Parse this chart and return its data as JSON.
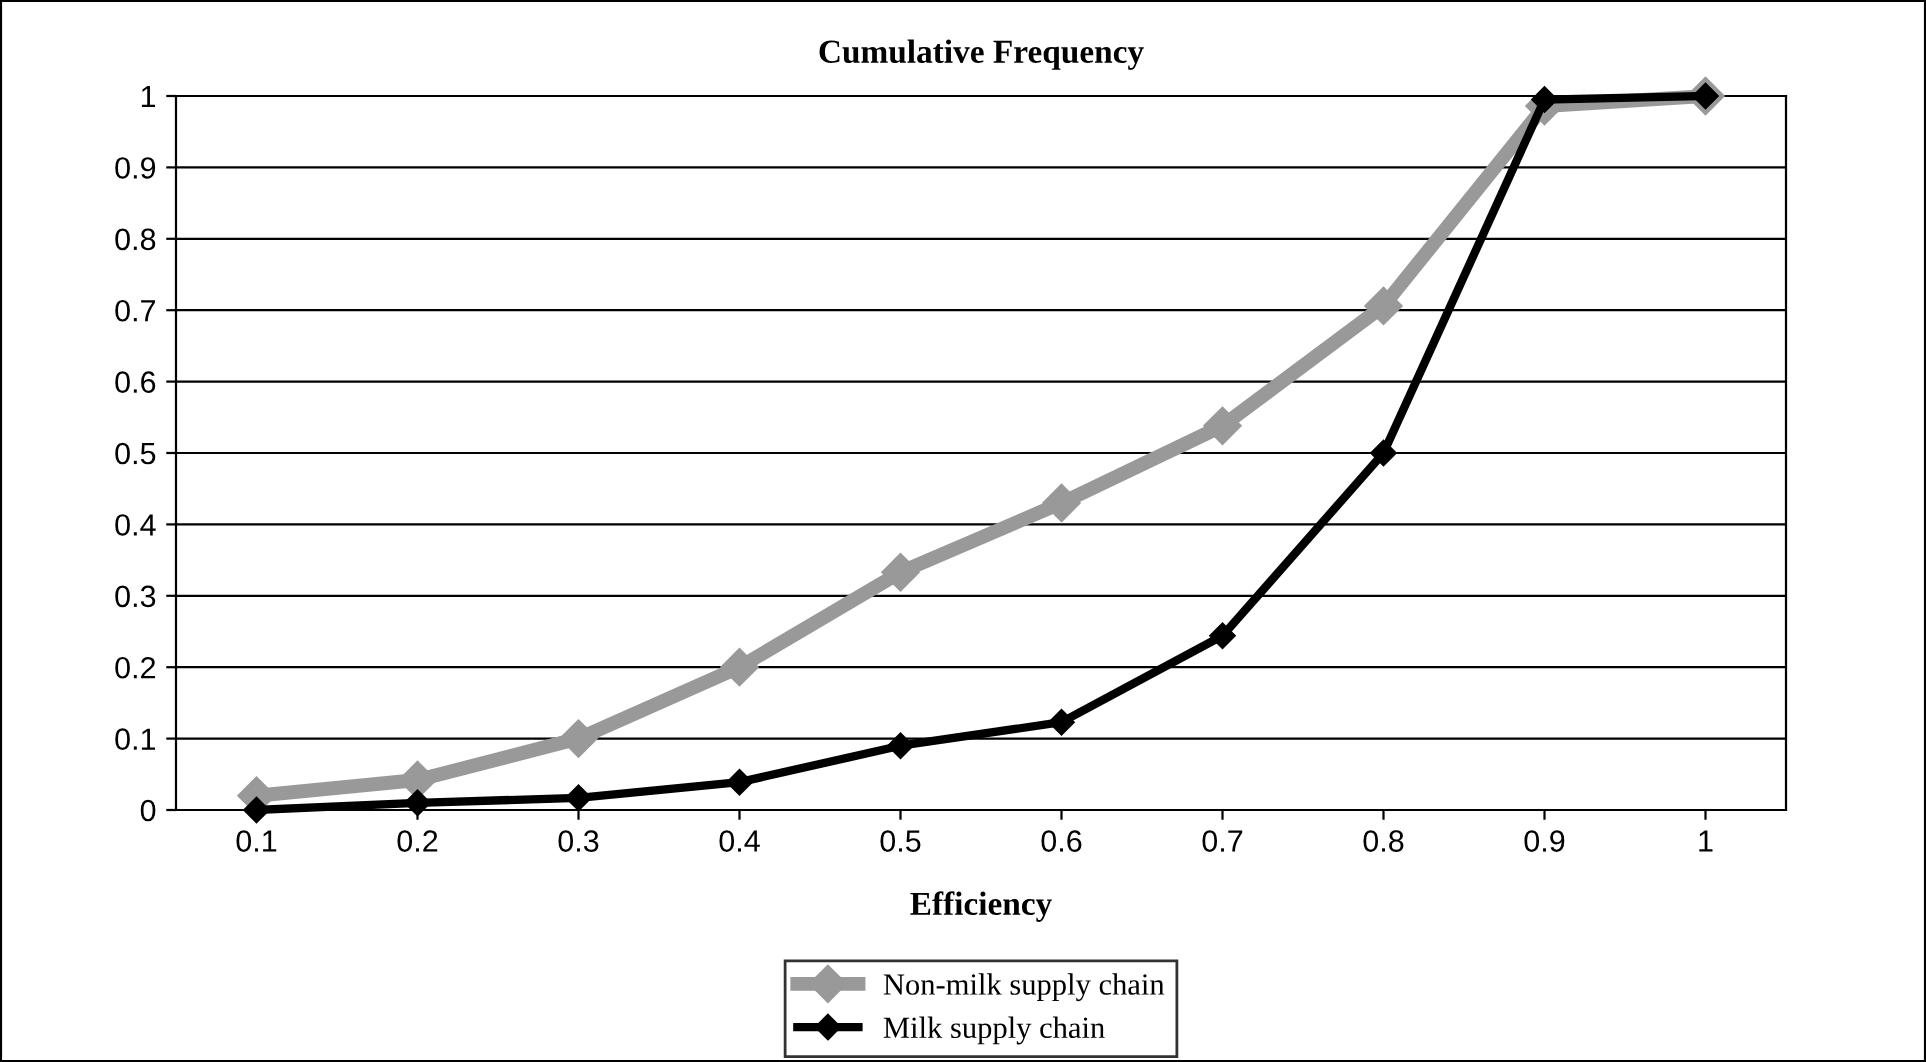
{
  "chart_data": {
    "type": "line",
    "title": "Cumulative Frequency",
    "xlabel": "Efficiency",
    "categories": [
      "0.1",
      "0.2",
      "0.3",
      "0.4",
      "0.5",
      "0.6",
      "0.7",
      "0.8",
      "0.9",
      "1"
    ],
    "series": [
      {
        "name": "Non-milk supply chain",
        "color": "#999999",
        "values": [
          0.02,
          0.042,
          0.1,
          0.2,
          0.333,
          0.43,
          0.538,
          0.706,
          0.986,
          1
        ]
      },
      {
        "name": "Milk supply chain",
        "color": "#000000",
        "values": [
          0,
          0.01,
          0.017,
          0.039,
          0.09,
          0.123,
          0.244,
          0.5,
          0.995,
          1
        ]
      }
    ],
    "ylim": [
      0,
      1
    ],
    "yticks": [
      0,
      0.1,
      0.2,
      0.3,
      0.4,
      0.5,
      0.6,
      0.7,
      0.8,
      0.9,
      1
    ],
    "grid": "y",
    "legend": "bottom",
    "marker": "diamond",
    "line_style": "solid"
  }
}
